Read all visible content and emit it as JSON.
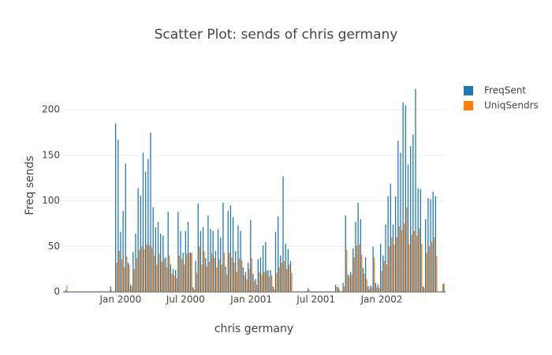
{
  "chart_data": {
    "type": "bar",
    "title": "Scatter Plot: sends of chris germany",
    "xlabel": "chris germany",
    "ylabel": "Freq sends",
    "x": [
      "1999-08-02",
      "1999-12-06",
      "1999-12-20",
      "1999-12-27",
      "2000-01-03",
      "2000-01-10",
      "2000-01-17",
      "2000-01-24",
      "2000-01-31",
      "2000-02-07",
      "2000-02-14",
      "2000-02-21",
      "2000-02-28",
      "2000-03-06",
      "2000-03-13",
      "2000-03-20",
      "2000-03-27",
      "2000-04-03",
      "2000-04-10",
      "2000-04-17",
      "2000-04-24",
      "2000-05-01",
      "2000-05-08",
      "2000-05-15",
      "2000-05-22",
      "2000-05-29",
      "2000-06-05",
      "2000-06-12",
      "2000-06-19",
      "2000-06-26",
      "2000-07-03",
      "2000-07-10",
      "2000-07-17",
      "2000-07-24",
      "2000-07-31",
      "2000-08-07",
      "2000-08-14",
      "2000-08-21",
      "2000-08-28",
      "2000-09-04",
      "2000-09-11",
      "2000-09-18",
      "2000-09-25",
      "2000-10-02",
      "2000-10-09",
      "2000-10-16",
      "2000-10-23",
      "2000-10-30",
      "2000-11-06",
      "2000-11-13",
      "2000-11-20",
      "2000-11-27",
      "2000-12-04",
      "2000-12-11",
      "2000-12-18",
      "2000-12-25",
      "2001-01-01",
      "2001-01-08",
      "2001-01-15",
      "2001-01-22",
      "2001-01-29",
      "2001-02-05",
      "2001-02-12",
      "2001-02-19",
      "2001-02-26",
      "2001-03-05",
      "2001-03-12",
      "2001-03-19",
      "2001-03-26",
      "2001-04-02",
      "2001-04-09",
      "2001-04-16",
      "2001-04-23",
      "2001-06-11",
      "2001-08-27",
      "2001-09-03",
      "2001-09-17",
      "2001-09-24",
      "2001-10-01",
      "2001-10-08",
      "2001-10-15",
      "2001-10-22",
      "2001-10-29",
      "2001-11-05",
      "2001-11-12",
      "2001-11-19",
      "2001-11-26",
      "2001-12-03",
      "2001-12-10",
      "2001-12-17",
      "2001-12-24",
      "2001-12-31",
      "2002-01-07",
      "2002-01-14",
      "2002-01-21",
      "2002-01-28",
      "2002-02-04",
      "2002-02-11",
      "2002-02-18",
      "2002-02-25",
      "2002-03-04",
      "2002-03-11",
      "2002-03-18",
      "2002-03-25",
      "2002-04-01",
      "2002-04-08",
      "2002-04-15",
      "2002-04-22",
      "2002-04-29",
      "2002-05-06",
      "2002-05-13",
      "2002-05-20",
      "2002-05-27",
      "2002-06-03",
      "2002-06-24"
    ],
    "series": [
      {
        "name": "FreqSent",
        "color": "#1f77b4",
        "values": [
          2,
          6,
          185,
          167,
          66,
          89,
          141,
          32,
          8,
          44,
          64,
          114,
          106,
          153,
          132,
          146,
          175,
          93,
          71,
          77,
          64,
          62,
          38,
          88,
          30,
          25,
          24,
          88,
          67,
          43,
          67,
          77,
          43,
          5,
          34,
          97,
          67,
          71,
          37,
          84,
          69,
          67,
          45,
          69,
          60,
          98,
          28,
          89,
          95,
          82,
          45,
          73,
          67,
          27,
          22,
          32,
          79,
          20,
          14,
          36,
          38,
          51,
          55,
          24,
          24,
          6,
          66,
          83,
          40,
          127,
          53,
          47,
          34,
          4,
          8,
          5,
          10,
          84,
          19,
          22,
          48,
          77,
          98,
          80,
          26,
          38,
          6,
          7,
          50,
          10,
          8,
          53,
          40,
          74,
          105,
          119,
          74,
          105,
          166,
          153,
          208,
          205,
          140,
          160,
          173,
          223,
          114,
          113,
          6,
          80,
          103,
          102,
          110,
          105,
          9
        ]
      },
      {
        "name": "UniqSendrs",
        "color": "#ff7f0e",
        "values": [
          7,
          2,
          32,
          45,
          36,
          27,
          39,
          30,
          6,
          25,
          37,
          46,
          50,
          47,
          52,
          51,
          49,
          40,
          30,
          42,
          33,
          36,
          27,
          40,
          20,
          18,
          15,
          40,
          36,
          30,
          42,
          43,
          43,
          3,
          21,
          50,
          30,
          45,
          28,
          33,
          42,
          37,
          27,
          36,
          30,
          43,
          19,
          43,
          38,
          32,
          22,
          37,
          35,
          18,
          14,
          25,
          37,
          12,
          8,
          22,
          19,
          22,
          23,
          17,
          18,
          3,
          21,
          27,
          32,
          34,
          25,
          30,
          21,
          2,
          6,
          3,
          6,
          46,
          17,
          19,
          38,
          51,
          52,
          41,
          20,
          14,
          3,
          5,
          38,
          5,
          4,
          23,
          34,
          30,
          50,
          60,
          52,
          60,
          72,
          68,
          75,
          93,
          52,
          63,
          67,
          62,
          70,
          53,
          5,
          43,
          50,
          55,
          60,
          39,
          9
        ]
      }
    ],
    "xlim": [
      "1999-07-24",
      "2002-06-29"
    ],
    "xticks": [
      {
        "value": "2000-01-01",
        "label": "Jan 2000"
      },
      {
        "value": "2000-07-01",
        "label": "Jul 2000"
      },
      {
        "value": "2001-01-01",
        "label": "Jan 2001"
      },
      {
        "value": "2001-07-01",
        "label": "Jul 2001"
      },
      {
        "value": "2002-01-01",
        "label": "Jan 2002"
      }
    ],
    "ylim": [
      0,
      234
    ],
    "yticks": [
      0,
      50,
      100,
      150,
      200
    ],
    "grid": true
  }
}
